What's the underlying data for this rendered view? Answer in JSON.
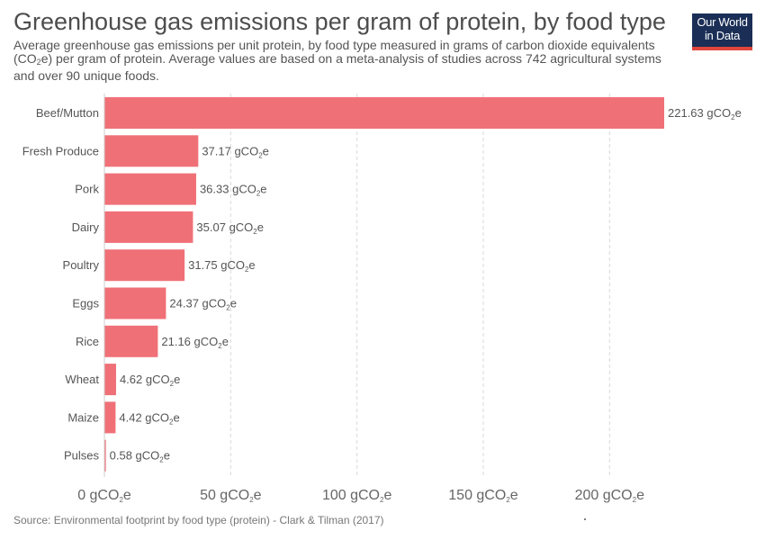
{
  "header": {
    "title": "Greenhouse gas emissions per gram of protein, by food type",
    "subtitle_part1": "Average greenhouse gas emissions per unit protein, by food type measured in grams of carbon dioxide equivalents (CO",
    "subtitle_sub": "2",
    "subtitle_part2": "e) per gram of protein. Average values are based on a meta-analysis of studies across 742 agricultural systems and over 90 unique foods."
  },
  "logo": {
    "line1": "Our World",
    "line2": "in Data"
  },
  "footer": {
    "source": "Source: Environmental footprint by food type (protein) - Clark & Tilman (2017)"
  },
  "chart_data": {
    "type": "bar",
    "orientation": "horizontal",
    "categories": [
      "Beef/Mutton",
      "Fresh Produce",
      "Pork",
      "Dairy",
      "Poultry",
      "Eggs",
      "Rice",
      "Wheat",
      "Maize",
      "Pulses"
    ],
    "values": [
      221.63,
      37.17,
      36.33,
      35.07,
      31.75,
      24.37,
      21.16,
      4.62,
      4.42,
      0.58
    ],
    "unit": "gCO₂e",
    "unit_prefix": "gCO",
    "unit_sub": "2",
    "unit_suffix": "e",
    "xlim": [
      0,
      221.63
    ],
    "xticks": [
      0,
      50,
      100,
      150,
      200
    ],
    "xtick_labels": [
      "0 gCO₂e",
      "50 gCO₂e",
      "100 gCO₂e",
      "150 gCO₂e",
      "200 gCO₂e"
    ],
    "grid": true,
    "bar_color": "#f07077",
    "data_labels": true
  }
}
